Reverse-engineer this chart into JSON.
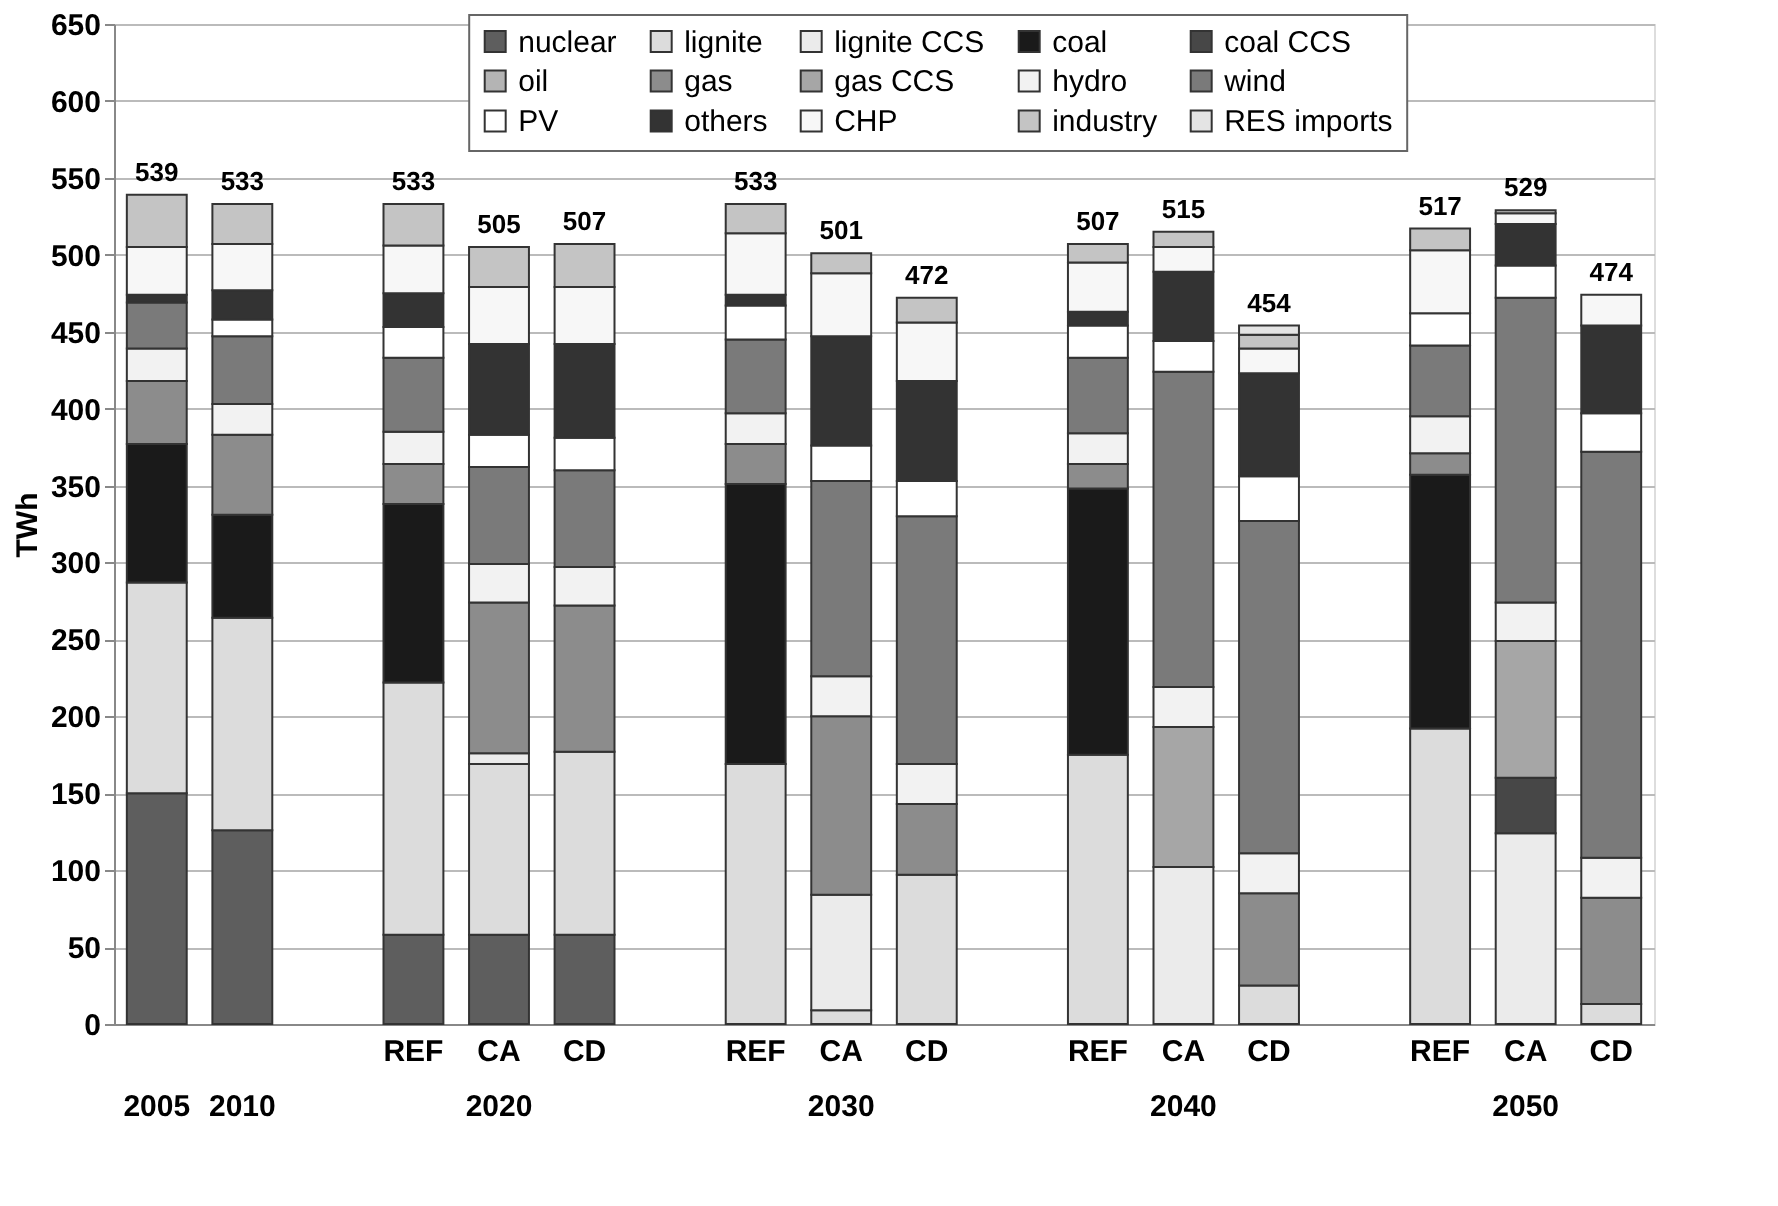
{
  "chart_data": {
    "type": "bar",
    "stacked": true,
    "ylabel": "TWh",
    "categories": [
      null,
      null,
      null,
      "REF",
      "CA",
      "CD",
      null,
      "REF",
      "CA",
      "CD",
      null,
      "REF",
      "CA",
      "CD",
      null,
      "REF",
      "CA",
      "CD"
    ],
    "annotations": [
      "2005",
      "2010",
      "2020",
      "2030",
      "2040",
      "2050"
    ],
    "ylim": [
      0,
      650
    ],
    "yticks": [
      0,
      50,
      100,
      150,
      200,
      250,
      300,
      350,
      400,
      450,
      500,
      550,
      600,
      650
    ],
    "grid": "y",
    "legend": "top",
    "totals": [
      "539",
      "533",
      null,
      "533",
      "505",
      "507",
      null,
      "533",
      "501",
      "472",
      null,
      "507",
      "515",
      "454",
      null,
      "517",
      "529",
      "474"
    ],
    "series": [
      {
        "name": "nuclear",
        "color": "#5e5e5e",
        "values": [
          150,
          126,
          null,
          58,
          58,
          58,
          null,
          null,
          null,
          null,
          null,
          null,
          null,
          null,
          null,
          null,
          null,
          null
        ]
      },
      {
        "name": "lignite",
        "color": "#dcdcdc",
        "values": [
          137,
          138,
          null,
          164,
          111,
          119,
          null,
          169,
          9,
          97,
          null,
          175,
          null,
          25,
          null,
          192,
          null,
          13
        ]
      },
      {
        "name": "lignite CCS",
        "color": "#ebebeb",
        "values": [
          null,
          null,
          null,
          null,
          7,
          null,
          null,
          null,
          75,
          null,
          null,
          null,
          102,
          null,
          null,
          null,
          124,
          null
        ]
      },
      {
        "name": "coal",
        "color": "#1a1a1a",
        "values": [
          90,
          67,
          null,
          116,
          null,
          null,
          null,
          182,
          null,
          null,
          null,
          173,
          null,
          null,
          null,
          165,
          null,
          null
        ]
      },
      {
        "name": "coal CCS",
        "color": "#474747",
        "values": [
          null,
          null,
          null,
          null,
          null,
          null,
          null,
          null,
          null,
          null,
          null,
          null,
          null,
          null,
          null,
          null,
          36,
          null
        ]
      },
      {
        "name": "oil",
        "color": "#b4b4b4",
        "values": [
          null,
          null,
          null,
          null,
          null,
          null,
          null,
          null,
          null,
          null,
          null,
          null,
          null,
          null,
          null,
          null,
          null,
          null
        ]
      },
      {
        "name": "gas",
        "color": "#8c8c8c",
        "values": [
          41,
          52,
          null,
          26,
          98,
          95,
          null,
          26,
          116,
          46,
          null,
          16,
          null,
          60,
          null,
          14,
          null,
          69
        ]
      },
      {
        "name": "gas CCS",
        "color": "#a6a6a6",
        "values": [
          null,
          null,
          null,
          null,
          null,
          null,
          null,
          null,
          null,
          null,
          null,
          null,
          91,
          null,
          null,
          null,
          89,
          null
        ]
      },
      {
        "name": "hydro",
        "color": "#f2f2f2",
        "values": [
          21,
          20,
          null,
          21,
          25,
          25,
          null,
          20,
          26,
          26,
          null,
          20,
          26,
          26,
          null,
          24,
          25,
          26
        ]
      },
      {
        "name": "wind",
        "color": "#7a7a7a",
        "values": [
          30,
          44,
          null,
          48,
          63,
          63,
          null,
          48,
          127,
          161,
          null,
          49,
          205,
          216,
          null,
          46,
          198,
          264
        ]
      },
      {
        "name": "PV",
        "color": "#ffffff",
        "values": [
          null,
          11,
          null,
          20,
          21,
          21,
          null,
          22,
          23,
          23,
          null,
          21,
          20,
          29,
          null,
          21,
          21,
          25
        ]
      },
      {
        "name": "others",
        "color": "#333333",
        "values": [
          5,
          19,
          null,
          22,
          59,
          61,
          null,
          7,
          71,
          65,
          null,
          9,
          45,
          67,
          null,
          null,
          27,
          57
        ]
      },
      {
        "name": "CHP",
        "color": "#f7f7f7",
        "values": [
          31,
          30,
          null,
          31,
          37,
          37,
          null,
          40,
          41,
          38,
          null,
          32,
          16,
          16,
          null,
          41,
          7,
          20
        ]
      },
      {
        "name": "industry",
        "color": "#c4c4c4",
        "values": [
          34,
          26,
          null,
          27,
          26,
          28,
          null,
          19,
          13,
          16,
          null,
          12,
          10,
          9,
          null,
          14,
          2,
          null
        ]
      },
      {
        "name": "RES imports",
        "color": "#e4e4e4",
        "values": [
          null,
          null,
          null,
          null,
          null,
          null,
          null,
          null,
          null,
          null,
          null,
          null,
          null,
          6,
          null,
          null,
          null,
          null
        ]
      }
    ]
  }
}
